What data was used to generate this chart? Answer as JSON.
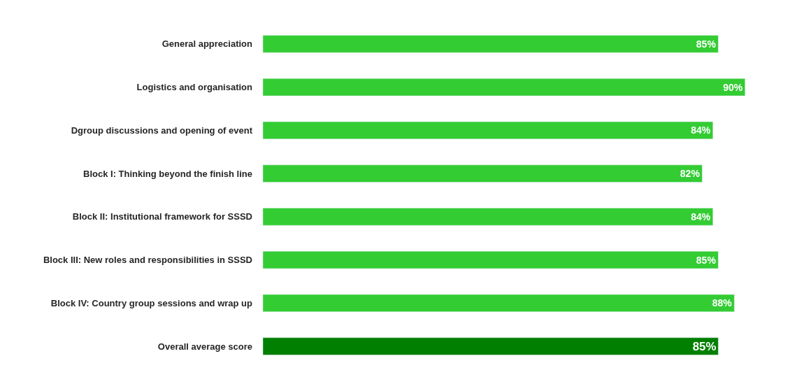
{
  "chart_data": {
    "type": "bar",
    "orientation": "horizontal",
    "categories": [
      "General appreciation",
      "Logistics and organisation",
      "Dgroup discussions and opening of event",
      "Block I: Thinking beyond the finish line",
      "Block II: Institutional framework for SSSD",
      "Block III: New roles and responsibilities in SSSD",
      "Block IV: Country group sessions and wrap up",
      "Overall average score"
    ],
    "values": [
      85,
      90,
      84,
      82,
      84,
      85,
      88,
      85
    ],
    "value_labels": [
      "85%",
      "90%",
      "84%",
      "82%",
      "84%",
      "85%",
      "88%",
      "85%"
    ],
    "colors": [
      "#33cc33",
      "#33cc33",
      "#33cc33",
      "#33cc33",
      "#33cc33",
      "#33cc33",
      "#33cc33",
      "#007f00"
    ],
    "tick_labels": "y"
  }
}
